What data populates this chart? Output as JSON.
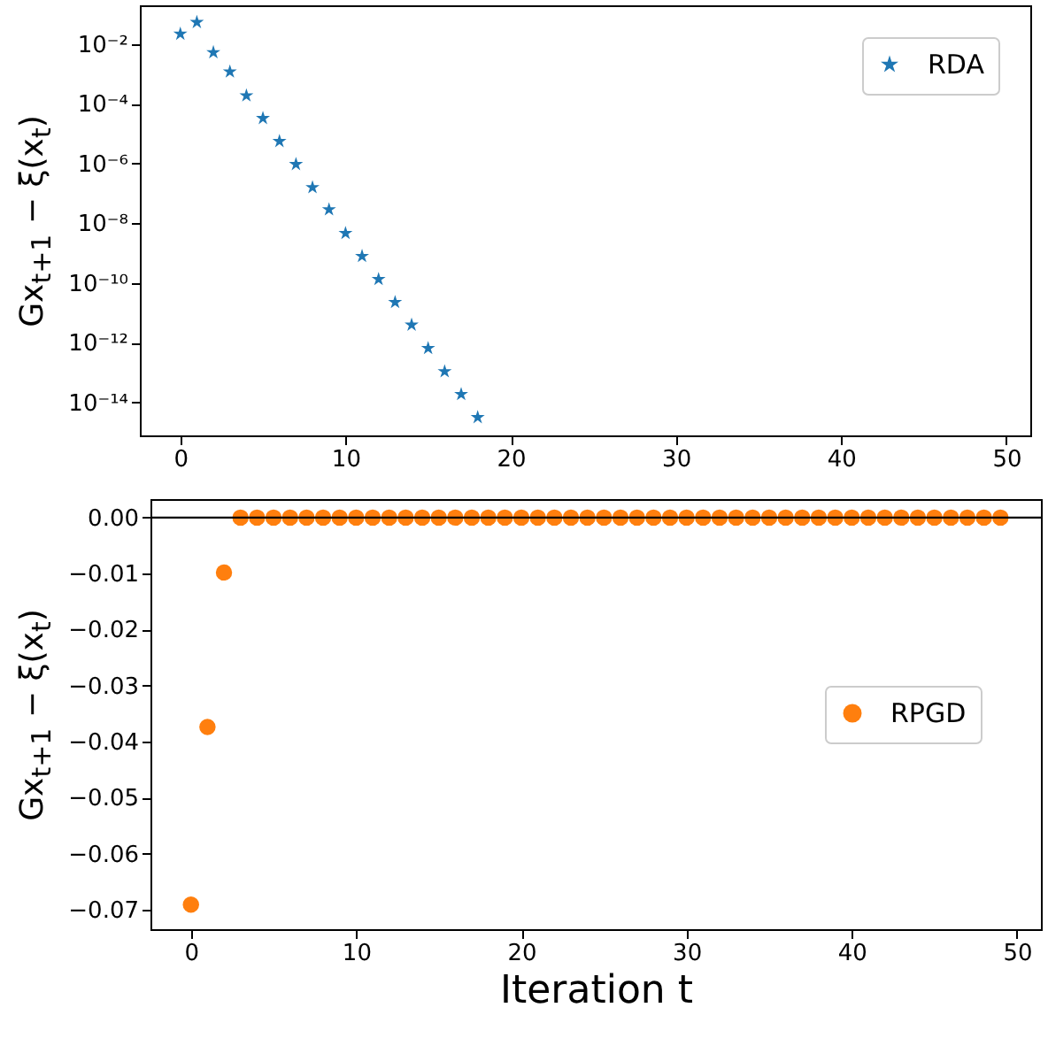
{
  "chart_data": [
    {
      "type": "scatter",
      "ylabel": "Gx$_{t+1}$ − ξ(x$_{t}$)",
      "x": [
        0,
        1,
        2,
        3,
        4,
        5,
        6,
        7,
        8,
        9,
        10,
        11,
        12,
        13,
        14,
        15,
        16,
        17,
        18
      ],
      "series": [
        {
          "name": "RDA",
          "color": "#1f77b4",
          "values": [
            0.022,
            0.054,
            0.0053,
            0.0012,
            0.00019,
            3.3e-05,
            5.6e-06,
            9.5e-07,
            1.6e-07,
            2.9e-08,
            4.7e-09,
            8e-10,
            1.35e-10,
            2.3e-11,
            4e-12,
            6.6e-13,
            1.1e-13,
            1.9e-14,
            3.2e-15
          ]
        }
      ],
      "log": "y",
      "xlim": [
        -2.45,
        51.45
      ],
      "xticks": [
        0,
        10,
        20,
        30,
        40,
        50
      ],
      "ylim": [
        8e-16,
        0.2
      ],
      "yticks": [
        {
          "value": 0.01,
          "label": "10⁻²"
        },
        {
          "value": 0.0001,
          "label": "10⁻⁴"
        },
        {
          "value": 1e-06,
          "label": "10⁻⁶"
        },
        {
          "value": 1e-08,
          "label": "10⁻⁸"
        },
        {
          "value": 1e-10,
          "label": "10⁻¹⁰"
        },
        {
          "value": 1e-12,
          "label": "10⁻¹²"
        },
        {
          "value": 1e-14,
          "label": "10⁻¹⁴"
        }
      ],
      "marker": "star",
      "legend": "top right",
      "grid": false
    },
    {
      "type": "scatter",
      "xlabel": "Iteration t",
      "ylabel": "Gx$_{t+1}$ − ξ(x$_{t}$)",
      "x": [
        0,
        1,
        2,
        3,
        4,
        5,
        6,
        7,
        8,
        9,
        10,
        11,
        12,
        13,
        14,
        15,
        16,
        17,
        18,
        19,
        20,
        21,
        22,
        23,
        24,
        25,
        26,
        27,
        28,
        29,
        30,
        31,
        32,
        33,
        34,
        35,
        36,
        37,
        38,
        39,
        40,
        41,
        42,
        43,
        44,
        45,
        46,
        47,
        48,
        49
      ],
      "series": [
        {
          "name": "RPGD",
          "color": "#ff7f0e",
          "values": [
            -0.0691,
            -0.0374,
            -0.0098,
            0,
            0,
            0,
            0,
            0,
            0,
            0,
            0,
            0,
            0,
            0,
            0,
            0,
            0,
            0,
            0,
            0,
            0,
            0,
            0,
            0,
            0,
            0,
            0,
            0,
            0,
            0,
            0,
            0,
            0,
            0,
            0,
            0,
            0,
            0,
            0,
            0,
            0,
            0,
            0,
            0,
            0,
            0,
            0,
            0,
            0,
            0
          ]
        }
      ],
      "xlim": [
        -2.45,
        51.45
      ],
      "xticks": [
        0,
        10,
        20,
        30,
        40,
        50
      ],
      "ylim": [
        -0.0735,
        0.0033
      ],
      "yticks": [
        {
          "value": 0,
          "label": "0.00"
        },
        {
          "value": -0.01,
          "label": "−0.01"
        },
        {
          "value": -0.02,
          "label": "−0.02"
        },
        {
          "value": -0.03,
          "label": "−0.03"
        },
        {
          "value": -0.04,
          "label": "−0.04"
        },
        {
          "value": -0.05,
          "label": "−0.05"
        },
        {
          "value": -0.06,
          "label": "−0.06"
        },
        {
          "value": -0.07,
          "label": "−0.07"
        }
      ],
      "ref_lines": [
        {
          "axis": "y",
          "value": 0,
          "color": "#000000"
        }
      ],
      "marker": "circle",
      "legend": "right",
      "grid": false
    }
  ]
}
